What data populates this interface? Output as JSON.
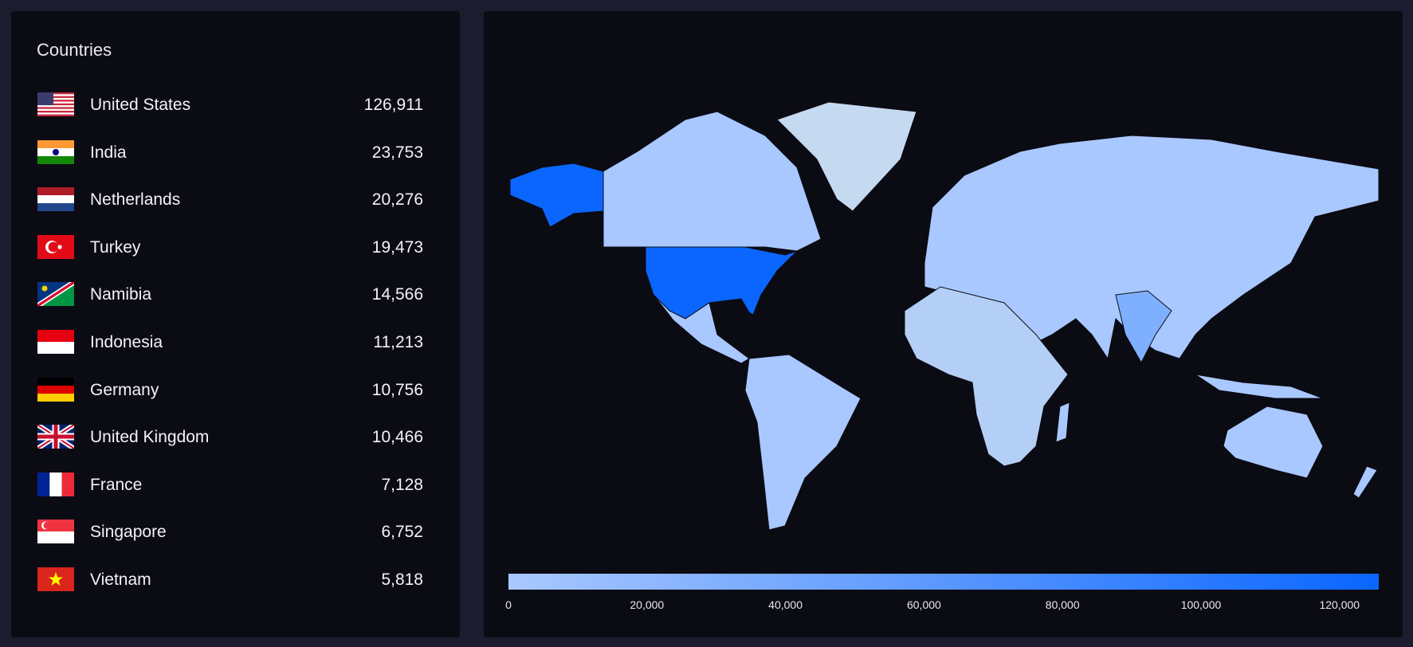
{
  "panel_title": "Countries",
  "countries": [
    {
      "name": "United States",
      "value": "126,911"
    },
    {
      "name": "India",
      "value": "23,753"
    },
    {
      "name": "Netherlands",
      "value": "20,276"
    },
    {
      "name": "Turkey",
      "value": "19,473"
    },
    {
      "name": "Namibia",
      "value": "14,566"
    },
    {
      "name": "Indonesia",
      "value": "11,213"
    },
    {
      "name": "Germany",
      "value": "10,756"
    },
    {
      "name": "United Kingdom",
      "value": "10,466"
    },
    {
      "name": "France",
      "value": "7,128"
    },
    {
      "name": "Singapore",
      "value": "6,752"
    },
    {
      "name": "Vietnam",
      "value": "5,818"
    }
  ],
  "map_legend": {
    "ticks": [
      "0",
      "20,000",
      "40,000",
      "60,000",
      "80,000",
      "100,000",
      "120,000"
    ]
  }
}
